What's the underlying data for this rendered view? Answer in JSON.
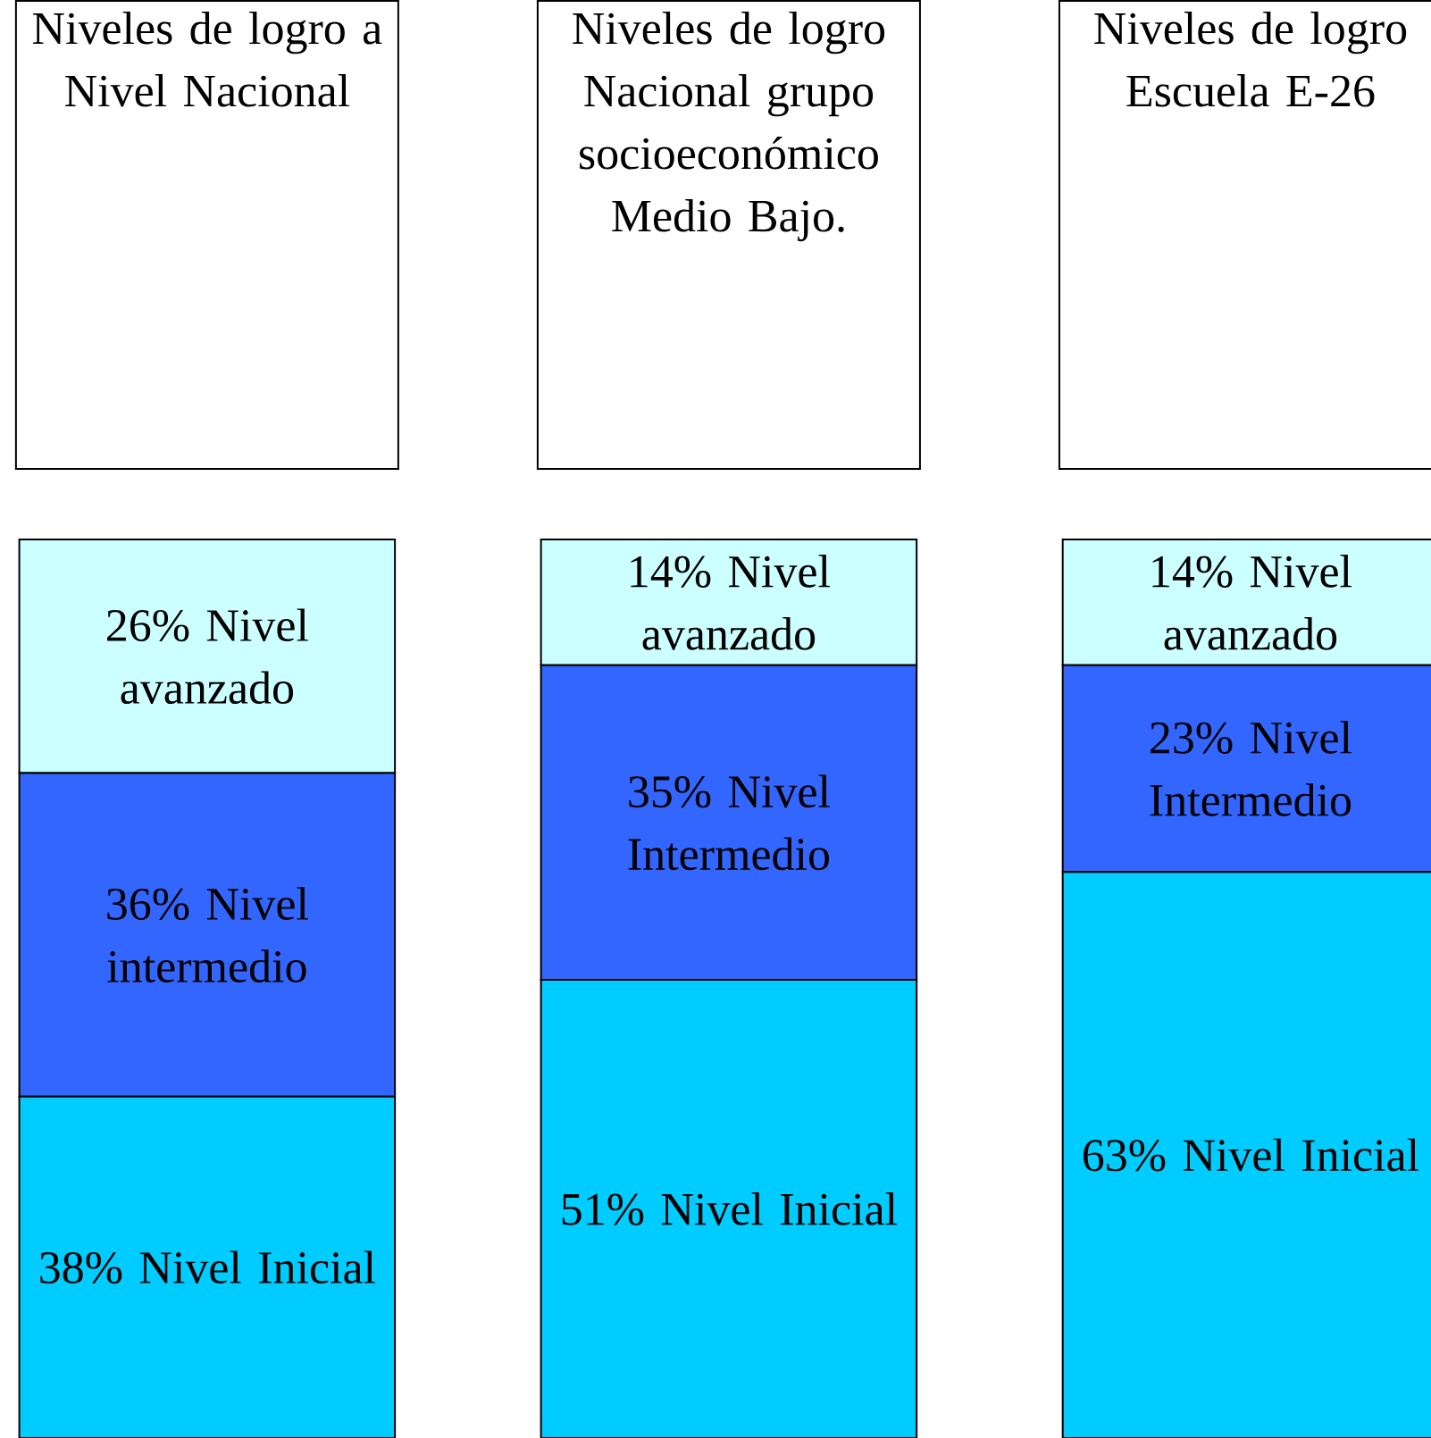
{
  "chart_data": {
    "type": "bar",
    "stacked": true,
    "tick_labels": false,
    "categories": [
      "Niveles de logro a Nivel Nacional",
      "Niveles de logro Nacional grupo socioeconómico Medio Bajo.",
      "Niveles de logro Escuela E-26"
    ],
    "series": [
      {
        "color": "#00ccff",
        "values": [
          38,
          51,
          63
        ],
        "value_labels": [
          "38% Nivel Inicial",
          "51% Nivel Inicial",
          "63% Nivel Inicial"
        ]
      },
      {
        "color": "#3366ff",
        "values": [
          36,
          35,
          23
        ],
        "value_labels": [
          "36% Nivel intermedio",
          "35% Nivel Intermedio",
          "23% Nivel Intermedio"
        ]
      },
      {
        "color": "#ccffff",
        "values": [
          26,
          14,
          14
        ],
        "value_labels": [
          "26% Nivel avanzado",
          "14% Nivel avanzado",
          "14% Nivel avanzado"
        ]
      }
    ]
  }
}
